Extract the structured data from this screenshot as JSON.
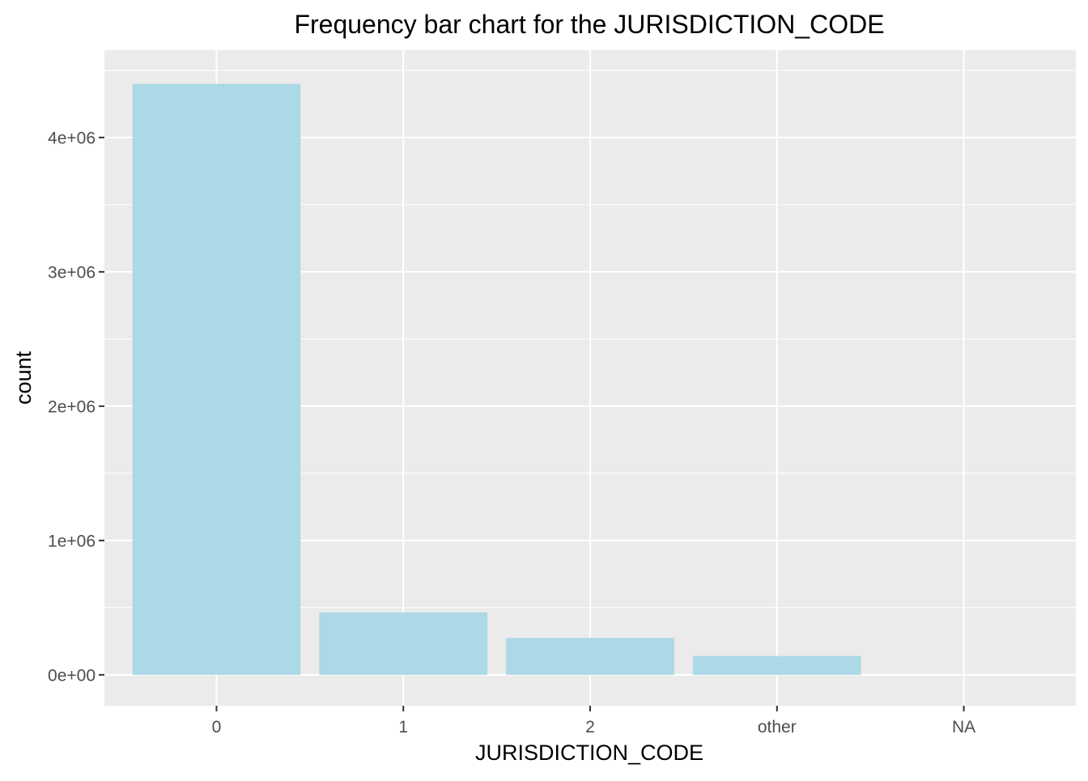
{
  "chart_data": {
    "type": "bar",
    "title": "Frequency bar chart for the JURISDICTION_CODE",
    "xlabel": "JURISDICTION_CODE",
    "ylabel": "count",
    "categories": [
      "0",
      "1",
      "2",
      "other",
      "NA"
    ],
    "values": [
      4400000,
      465000,
      275000,
      140000,
      0
    ],
    "ylim": [
      -230000,
      4650000
    ],
    "yticks": [
      0,
      1000000,
      2000000,
      3000000,
      4000000
    ],
    "ytick_labels": [
      "0e+00",
      "1e+06",
      "2e+06",
      "3e+06",
      "4e+06"
    ],
    "grid": true,
    "legend": "none",
    "colors": {
      "bar": "#add8e6",
      "panel_bg": "#ebebeb",
      "grid_major": "#ffffff",
      "tick_text": "#4d4d4d",
      "axis_title": "#000000"
    }
  }
}
